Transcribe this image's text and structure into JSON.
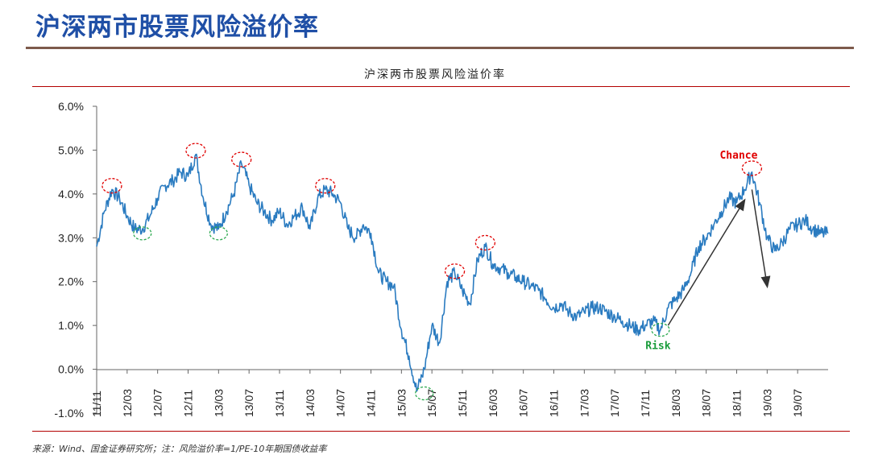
{
  "header": {
    "title": "沪深两市股票风险溢价率"
  },
  "footer": {
    "source": "来源：Wind、国金证券研究所；注：风险溢价率=1/PE-10年期国债收益率"
  },
  "colors": {
    "line": "#2a7bc0",
    "peak_circle": "#e00000",
    "trough_circle": "#2ca94f",
    "arrow": "#333333"
  },
  "chart_data": {
    "type": "line",
    "title": "沪深两市股票风险溢价率",
    "xlabel": "",
    "ylabel": "",
    "ylim": [
      -1.0,
      6.0
    ],
    "yticks": [
      "6.0%",
      "5.0%",
      "4.0%",
      "3.0%",
      "2.0%",
      "1.0%",
      "0.0%",
      "-1.0%"
    ],
    "ytick_values": [
      6.0,
      5.0,
      4.0,
      3.0,
      2.0,
      1.0,
      0.0,
      -1.0
    ],
    "xticks": [
      "11/11",
      "12/03",
      "12/07",
      "12/11",
      "13/03",
      "13/07",
      "13/11",
      "14/03",
      "14/07",
      "14/11",
      "15/03",
      "15/07",
      "15/11",
      "16/03",
      "16/07",
      "16/11",
      "17/03",
      "17/07",
      "17/11",
      "18/03",
      "18/07",
      "18/11",
      "19/03",
      "19/07"
    ],
    "x_range_months": [
      "2011-11",
      "2019-11"
    ],
    "grid": false,
    "series": [
      {
        "values_by_month": [
          [
            "2011-11",
            2.8
          ],
          [
            "2011-12",
            3.6
          ],
          [
            "2012-01",
            4.1
          ],
          [
            "2012-02",
            3.9
          ],
          [
            "2012-03",
            3.5
          ],
          [
            "2012-04",
            3.2
          ],
          [
            "2012-05",
            3.2
          ],
          [
            "2012-06",
            3.5
          ],
          [
            "2012-07",
            3.9
          ],
          [
            "2012-08",
            4.2
          ],
          [
            "2012-09",
            4.3
          ],
          [
            "2012-10",
            4.5
          ],
          [
            "2012-11",
            4.4
          ],
          [
            "2012-12",
            4.9
          ],
          [
            "2013-01",
            3.9
          ],
          [
            "2013-02",
            3.3
          ],
          [
            "2013-03",
            3.2
          ],
          [
            "2013-04",
            3.6
          ],
          [
            "2013-05",
            4.0
          ],
          [
            "2013-06",
            4.7
          ],
          [
            "2013-07",
            4.2
          ],
          [
            "2013-08",
            3.8
          ],
          [
            "2013-09",
            3.6
          ],
          [
            "2013-10",
            3.4
          ],
          [
            "2013-11",
            3.6
          ],
          [
            "2013-12",
            3.3
          ],
          [
            "2014-01",
            3.5
          ],
          [
            "2014-02",
            3.7
          ],
          [
            "2014-03",
            3.2
          ],
          [
            "2014-04",
            3.9
          ],
          [
            "2014-05",
            4.1
          ],
          [
            "2014-06",
            4.0
          ],
          [
            "2014-07",
            3.8
          ],
          [
            "2014-08",
            3.2
          ],
          [
            "2014-09",
            3.0
          ],
          [
            "2014-10",
            3.3
          ],
          [
            "2014-11",
            3.1
          ],
          [
            "2014-12",
            2.2
          ],
          [
            "2015-01",
            2.0
          ],
          [
            "2015-02",
            1.9
          ],
          [
            "2015-03",
            0.9
          ],
          [
            "2015-04",
            0.3
          ],
          [
            "2015-05",
            -0.5
          ],
          [
            "2015-06",
            0.0
          ],
          [
            "2015-07",
            1.0
          ],
          [
            "2015-08",
            0.6
          ],
          [
            "2015-09",
            2.0
          ],
          [
            "2015-10",
            2.2
          ],
          [
            "2015-11",
            1.8
          ],
          [
            "2015-12",
            1.5
          ],
          [
            "2016-01",
            2.5
          ],
          [
            "2016-02",
            2.8
          ],
          [
            "2016-03",
            2.4
          ],
          [
            "2016-04",
            2.3
          ],
          [
            "2016-05",
            2.2
          ],
          [
            "2016-06",
            2.1
          ],
          [
            "2016-07",
            2.0
          ],
          [
            "2016-08",
            1.9
          ],
          [
            "2016-09",
            1.8
          ],
          [
            "2016-10",
            1.6
          ],
          [
            "2016-11",
            1.4
          ],
          [
            "2016-12",
            1.5
          ],
          [
            "2017-01",
            1.3
          ],
          [
            "2017-02",
            1.2
          ],
          [
            "2017-03",
            1.3
          ],
          [
            "2017-04",
            1.4
          ],
          [
            "2017-05",
            1.4
          ],
          [
            "2017-06",
            1.3
          ],
          [
            "2017-07",
            1.2
          ],
          [
            "2017-08",
            1.1
          ],
          [
            "2017-09",
            1.0
          ],
          [
            "2017-10",
            0.9
          ],
          [
            "2017-11",
            1.0
          ],
          [
            "2017-12",
            1.1
          ],
          [
            "2018-01",
            0.9
          ],
          [
            "2018-02",
            1.4
          ],
          [
            "2018-03",
            1.6
          ],
          [
            "2018-04",
            1.8
          ],
          [
            "2018-05",
            2.2
          ],
          [
            "2018-06",
            2.8
          ],
          [
            "2018-07",
            3.0
          ],
          [
            "2018-08",
            3.3
          ],
          [
            "2018-09",
            3.6
          ],
          [
            "2018-10",
            3.9
          ],
          [
            "2018-11",
            3.8
          ],
          [
            "2018-12",
            4.1
          ],
          [
            "2019-01",
            4.5
          ],
          [
            "2019-02",
            3.8
          ],
          [
            "2019-03",
            3.0
          ],
          [
            "2019-04",
            2.7
          ],
          [
            "2019-05",
            2.9
          ],
          [
            "2019-06",
            3.2
          ],
          [
            "2019-07",
            3.3
          ],
          [
            "2019-08",
            3.4
          ],
          [
            "2019-09",
            3.2
          ],
          [
            "2019-10",
            3.1
          ],
          [
            "2019-11",
            3.1
          ]
        ]
      }
    ],
    "annotations": {
      "chance_label": "Chance",
      "risk_label": "Risk",
      "chance_point": [
        "2018-12",
        4.55
      ],
      "risk_point": [
        "2018-01",
        0.9
      ],
      "peak_markers": [
        [
          "2012-01",
          4.15
        ],
        [
          "2012-12",
          4.95
        ],
        [
          "2013-06",
          4.75
        ],
        [
          "2014-05",
          4.15
        ],
        [
          "2015-10",
          2.2
        ],
        [
          "2016-02",
          2.85
        ],
        [
          "2019-01",
          4.55
        ]
      ],
      "trough_markers": [
        [
          "2012-05",
          3.1
        ],
        [
          "2013-03",
          3.1
        ],
        [
          "2015-06",
          -0.55
        ],
        [
          "2018-01",
          0.9
        ]
      ],
      "arrows": [
        {
          "from": [
            "2018-02",
            1.0
          ],
          "to": [
            "2018-12",
            3.85
          ]
        },
        {
          "from": [
            "2019-01",
            4.1
          ],
          "to": [
            "2019-03",
            1.9
          ]
        }
      ]
    }
  }
}
